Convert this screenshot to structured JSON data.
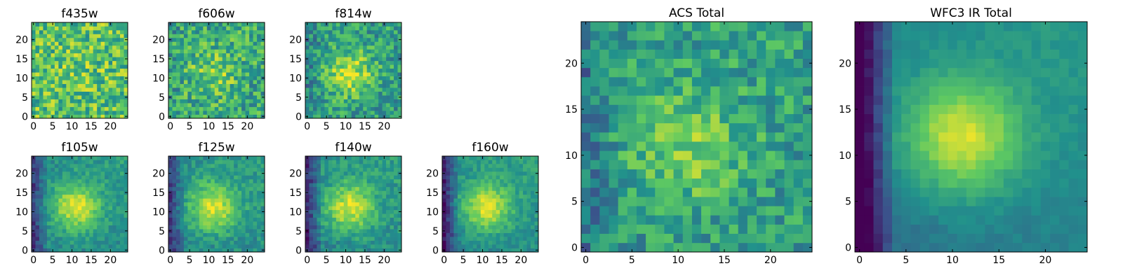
{
  "colors": {
    "colormap": "viridis",
    "viridis_stops": [
      "#440154",
      "#3b528b",
      "#21918c",
      "#5ec962",
      "#fde725"
    ],
    "frame": "#000000"
  },
  "chart_data": [
    {
      "type": "heatmap",
      "title": "f435w",
      "xlim": [
        0,
        24
      ],
      "ylim": [
        0,
        24
      ],
      "xticks": [
        "0",
        "5",
        "10",
        "15",
        "20"
      ],
      "yticks": [
        "0",
        "5",
        "10",
        "15",
        "20"
      ],
      "colormap": "viridis",
      "grid_size": 25,
      "peak": {
        "x": 12,
        "y": 12
      },
      "peak_strength": 0.05,
      "noise": 0.5,
      "edge_dark": 0.0,
      "base": 0.7
    },
    {
      "type": "heatmap",
      "title": "f606w",
      "xlim": [
        0,
        24
      ],
      "ylim": [
        0,
        24
      ],
      "xticks": [
        "0",
        "5",
        "10",
        "15",
        "20"
      ],
      "yticks": [
        "0",
        "5",
        "10",
        "15",
        "20"
      ],
      "colormap": "viridis",
      "grid_size": 25,
      "peak": {
        "x": 11,
        "y": 11
      },
      "peak_strength": 0.2,
      "noise": 0.45,
      "edge_dark": 0.05,
      "base": 0.6
    },
    {
      "type": "heatmap",
      "title": "f814w",
      "xlim": [
        0,
        24
      ],
      "ylim": [
        0,
        24
      ],
      "xticks": [
        "0",
        "5",
        "10",
        "15",
        "20"
      ],
      "yticks": [
        "0",
        "5",
        "10",
        "15",
        "20"
      ],
      "colormap": "viridis",
      "grid_size": 25,
      "peak": {
        "x": 11,
        "y": 11
      },
      "peak_strength": 0.35,
      "noise": 0.4,
      "edge_dark": 0.1,
      "base": 0.55
    },
    {
      "type": "heatmap",
      "title": "f105w",
      "xlim": [
        0,
        24
      ],
      "ylim": [
        0,
        24
      ],
      "xticks": [
        "0",
        "5",
        "10",
        "15",
        "20"
      ],
      "yticks": [
        "0",
        "5",
        "10",
        "15",
        "20"
      ],
      "colormap": "viridis",
      "grid_size": 25,
      "peak": {
        "x": 11,
        "y": 11
      },
      "peak_strength": 0.45,
      "noise": 0.2,
      "edge_dark": 0.3,
      "base": 0.5
    },
    {
      "type": "heatmap",
      "title": "f125w",
      "xlim": [
        0,
        24
      ],
      "ylim": [
        0,
        24
      ],
      "xticks": [
        "0",
        "5",
        "10",
        "15",
        "20"
      ],
      "yticks": [
        "0",
        "5",
        "10",
        "15",
        "20"
      ],
      "colormap": "viridis",
      "grid_size": 25,
      "peak": {
        "x": 11,
        "y": 11
      },
      "peak_strength": 0.45,
      "noise": 0.22,
      "edge_dark": 0.3,
      "base": 0.5
    },
    {
      "type": "heatmap",
      "title": "f140w",
      "xlim": [
        0,
        24
      ],
      "ylim": [
        0,
        24
      ],
      "xticks": [
        "0",
        "5",
        "10",
        "15",
        "20"
      ],
      "yticks": [
        "0",
        "5",
        "10",
        "15",
        "20"
      ],
      "colormap": "viridis",
      "grid_size": 25,
      "peak": {
        "x": 11,
        "y": 11
      },
      "peak_strength": 0.45,
      "noise": 0.22,
      "edge_dark": 0.35,
      "base": 0.5
    },
    {
      "type": "heatmap",
      "title": "f160w",
      "xlim": [
        0,
        24
      ],
      "ylim": [
        0,
        24
      ],
      "xticks": [
        "0",
        "5",
        "10",
        "15",
        "20"
      ],
      "yticks": [
        "0",
        "5",
        "10",
        "15",
        "20"
      ],
      "colormap": "viridis",
      "grid_size": 25,
      "peak": {
        "x": 11,
        "y": 11
      },
      "peak_strength": 0.45,
      "noise": 0.18,
      "edge_dark": 0.4,
      "base": 0.5
    },
    {
      "type": "heatmap",
      "title": "ACS Total",
      "xlim": [
        0,
        24
      ],
      "ylim": [
        0,
        24
      ],
      "xticks": [
        "0",
        "5",
        "10",
        "15",
        "20"
      ],
      "yticks": [
        "0",
        "5",
        "10",
        "15",
        "20"
      ],
      "colormap": "viridis",
      "grid_size": 25,
      "peak": {
        "x": 11,
        "y": 11
      },
      "peak_strength": 0.25,
      "noise": 0.35,
      "edge_dark": 0.15,
      "base": 0.55
    },
    {
      "type": "heatmap",
      "title": "WFC3 IR Total",
      "xlim": [
        0,
        24
      ],
      "ylim": [
        0,
        24
      ],
      "xticks": [
        "0",
        "5",
        "10",
        "15",
        "20"
      ],
      "yticks": [
        "0",
        "5",
        "10",
        "15",
        "20"
      ],
      "colormap": "viridis",
      "grid_size": 25,
      "peak": {
        "x": 11,
        "y": 12
      },
      "peak_strength": 0.5,
      "noise": 0.08,
      "edge_dark": 0.5,
      "base": 0.45
    }
  ]
}
